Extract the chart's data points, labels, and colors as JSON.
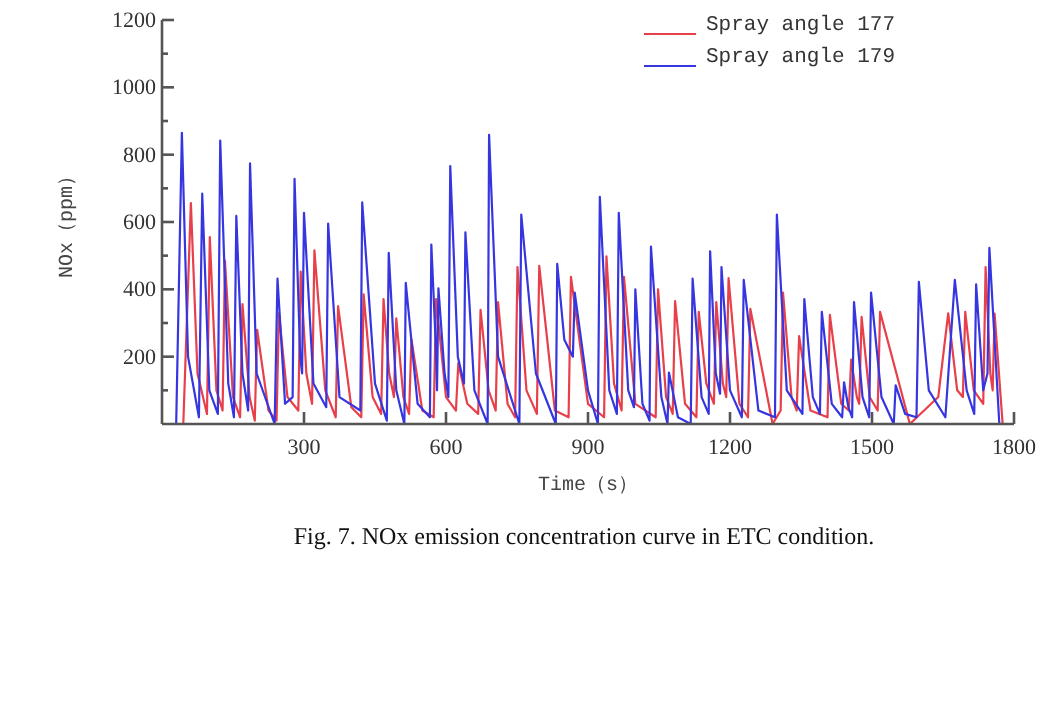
{
  "chart_data": {
    "type": "line",
    "xlabel": "Time（s）",
    "ylabel": "NOx（ppm）",
    "annotations": [
      "Fig. 7. NOx emission concentration curve in ETC condition."
    ],
    "xlim": [
      0,
      1800
    ],
    "xticks": [
      300,
      600,
      900,
      1200,
      1500,
      1800
    ],
    "ylim": [
      0,
      1200
    ],
    "yticks": [
      {
        "value": 100,
        "label": null
      },
      200,
      {
        "value": 300,
        "label": null
      },
      400,
      {
        "value": 500,
        "label": null
      },
      600,
      {
        "value": 700,
        "label": null
      },
      800,
      {
        "value": 900,
        "label": null
      },
      1000,
      {
        "value": 1100,
        "label": null
      },
      1200
    ],
    "grid": false,
    "legend": "top right",
    "line_style": "solid",
    "marker": "none",
    "series": [
      {
        "name": "Spray angle 177",
        "color": "#e8404a",
        "x": [
          45,
          61,
          75,
          95,
          101,
          115,
          128,
          133,
          150,
          165,
          170,
          185,
          196,
          201,
          225,
          242,
          247,
          265,
          288,
          293,
          305,
          317,
          322,
          345,
          367,
          372,
          400,
          421,
          426,
          445,
          463,
          468,
          480,
          490,
          495,
          510,
          522,
          527,
          550,
          574,
          579,
          600,
          621,
          626,
          645,
          668,
          673,
          690,
          705,
          710,
          730,
          746,
          751,
          770,
          792,
          797,
          830,
          859,
          864,
          900,
          934,
          939,
          955,
          971,
          976,
          1000,
          1043,
          1048,
          1065,
          1079,
          1084,
          1105,
          1129,
          1134,
          1150,
          1166,
          1171,
          1185,
          1192,
          1197,
          1220,
          1238,
          1243,
          1290,
          1307,
          1312,
          1330,
          1341,
          1346,
          1370,
          1406,
          1411,
          1435,
          1451,
          1456,
          1468,
          1473,
          1478,
          1495,
          1512,
          1517,
          1580,
          1640,
          1661,
          1680,
          1692,
          1697,
          1715,
          1735,
          1740,
          1750,
          1755,
          1759,
          1776
        ],
        "values": [
          0,
          656,
          150,
          30,
          555,
          100,
          40,
          485,
          80,
          20,
          356,
          80,
          10,
          280,
          40,
          10,
          329,
          80,
          40,
          453,
          150,
          60,
          516,
          100,
          20,
          350,
          50,
          20,
          385,
          80,
          30,
          371,
          150,
          80,
          314,
          80,
          30,
          251,
          40,
          20,
          371,
          80,
          40,
          181,
          60,
          30,
          339,
          100,
          40,
          362,
          60,
          20,
          466,
          100,
          30,
          470,
          40,
          20,
          437,
          60,
          20,
          498,
          120,
          40,
          437,
          60,
          20,
          400,
          80,
          30,
          365,
          60,
          20,
          333,
          120,
          60,
          362,
          120,
          80,
          433,
          60,
          20,
          342,
          0,
          40,
          390,
          80,
          40,
          261,
          40,
          20,
          324,
          60,
          40,
          191,
          80,
          60,
          318,
          80,
          40,
          333,
          0,
          80,
          329,
          100,
          80,
          333,
          100,
          60,
          466,
          150,
          100,
          328,
          0
        ]
      },
      {
        "name": "Spray angle 179",
        "color": "#3636e0",
        "x": [
          30,
          42,
          55,
          78,
          85,
          100,
          118,
          123,
          140,
          152,
          157,
          170,
          182,
          186,
          200,
          238,
          244,
          260,
          276,
          280,
          292,
          296,
          300,
          320,
          347,
          351,
          375,
          419,
          423,
          450,
          475,
          479,
          495,
          512,
          515,
          540,
          566,
          569,
          578,
          581,
          584,
          597,
          605,
          609,
          625,
          638,
          641,
          660,
          688,
          691,
          710,
          755,
          759,
          790,
          832,
          835,
          850,
          868,
          872,
          900,
          921,
          925,
          945,
          961,
          965,
          985,
          997,
          1000,
          1015,
          1030,
          1033,
          1055,
          1068,
          1071,
          1090,
          1117,
          1121,
          1140,
          1155,
          1158,
          1170,
          1179,
          1182,
          1200,
          1225,
          1229,
          1260,
          1295,
          1299,
          1320,
          1353,
          1357,
          1375,
          1390,
          1394,
          1415,
          1437,
          1441,
          1450,
          1458,
          1462,
          1480,
          1494,
          1498,
          1520,
          1546,
          1550,
          1570,
          1594,
          1599,
          1620,
          1655,
          1675,
          1700,
          1716,
          1720,
          1735,
          1744,
          1748,
          1769
        ],
        "values": [
          0,
          865,
          200,
          20,
          684,
          100,
          30,
          842,
          120,
          20,
          618,
          150,
          40,
          774,
          150,
          0,
          432,
          60,
          80,
          728,
          200,
          150,
          627,
          120,
          50,
          595,
          80,
          40,
          658,
          120,
          10,
          508,
          100,
          0,
          419,
          60,
          20,
          533,
          250,
          100,
          403,
          150,
          80,
          766,
          200,
          120,
          569,
          100,
          0,
          859,
          200,
          0,
          622,
          150,
          0,
          476,
          250,
          200,
          390,
          100,
          0,
          675,
          100,
          30,
          627,
          100,
          50,
          400,
          60,
          10,
          527,
          80,
          0,
          153,
          20,
          0,
          432,
          80,
          30,
          513,
          150,
          90,
          466,
          100,
          20,
          428,
          40,
          20,
          622,
          100,
          30,
          371,
          80,
          30,
          333,
          60,
          20,
          124,
          50,
          20,
          362,
          80,
          20,
          390,
          80,
          0,
          115,
          30,
          20,
          422,
          100,
          20,
          428,
          100,
          30,
          415,
          100,
          150,
          523,
          0
        ]
      }
    ]
  }
}
